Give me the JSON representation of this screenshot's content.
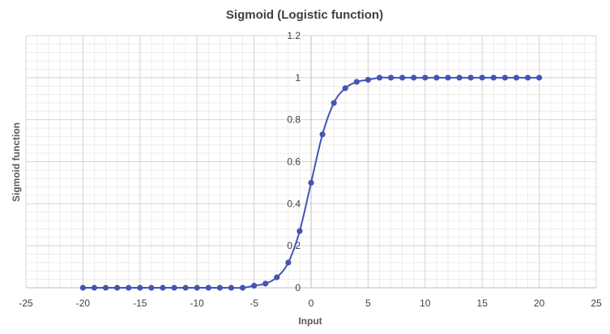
{
  "chart_data": {
    "type": "scatter",
    "title": "Sigmoid (Logistic function)",
    "xlabel": "Input",
    "ylabel": "Sigmoid function",
    "xlim": [
      -25,
      25
    ],
    "ylim": [
      0,
      1.2
    ],
    "x_ticks": [
      -25,
      -20,
      -15,
      -10,
      -5,
      0,
      5,
      10,
      15,
      20,
      25
    ],
    "y_ticks": [
      0,
      0.2,
      0.4,
      0.6,
      0.8,
      1,
      1.2
    ],
    "grid": true,
    "minor_grid": true,
    "smooth_line": true,
    "marker": "circle",
    "series_color": "#4355b4",
    "series": [
      {
        "x": [
          -20,
          -19,
          -18,
          -17,
          -16,
          -15,
          -14,
          -13,
          -12,
          -11,
          -10,
          -9,
          -8,
          -7,
          -6,
          -5,
          -4,
          -3,
          -2,
          -1,
          0,
          1,
          2,
          3,
          4,
          5,
          6,
          7,
          8,
          9,
          10,
          11,
          12,
          13,
          14,
          15,
          16,
          17,
          18,
          19,
          20
        ],
        "y": [
          0,
          0,
          0,
          0,
          0,
          0,
          0,
          0,
          0,
          0,
          0,
          0,
          0,
          0,
          0,
          0.01,
          0.02,
          0.05,
          0.12,
          0.27,
          0.5,
          0.73,
          0.88,
          0.95,
          0.98,
          0.99,
          1,
          1,
          1,
          1,
          1,
          1,
          1,
          1,
          1,
          1,
          1,
          1,
          1,
          1,
          1
        ]
      }
    ]
  }
}
